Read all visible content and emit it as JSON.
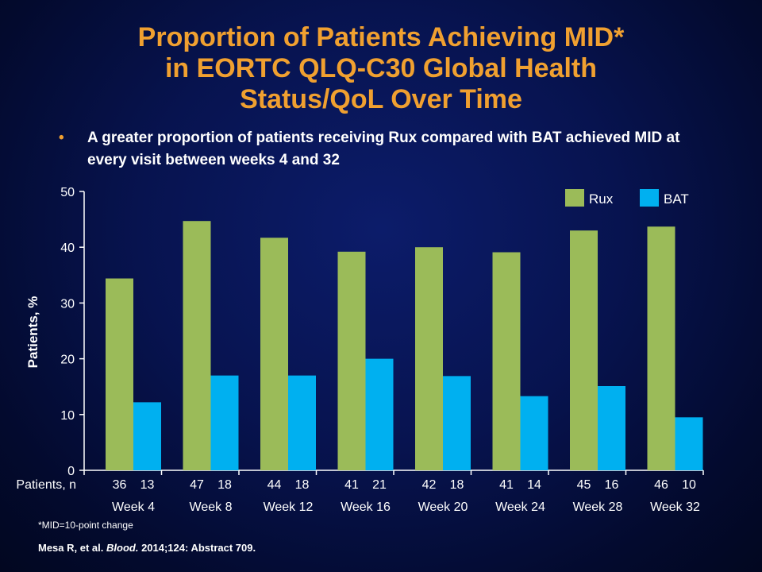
{
  "title": {
    "line1": "Proportion of Patients Achieving MID*",
    "line2": "in EORTC QLQ-C30 Global Health",
    "line3": "Status/QoL Over Time"
  },
  "bullet": {
    "marker": "•",
    "text": "A greater proportion of patients receiving Rux compared with BAT achieved MID at every visit between weeks 4 and 32"
  },
  "footnote": "*MID=10-point change",
  "citation": {
    "authors": "Mesa R, et al.",
    "journal": "Blood.",
    "rest": "2014;124: Abstract 709."
  },
  "colors": {
    "title": "#f0a030",
    "rux": "#9bbb59",
    "bat": "#00b0f0"
  },
  "chart_data": {
    "type": "bar",
    "ylabel": "Patients, %",
    "ylim": [
      0,
      50
    ],
    "yticks": [
      0,
      10,
      20,
      30,
      40,
      50
    ],
    "categories": [
      "Week 4",
      "Week 8",
      "Week 12",
      "Week 16",
      "Week 20",
      "Week 24",
      "Week 28",
      "Week 32"
    ],
    "series": [
      {
        "name": "Rux",
        "color": "#9bbb59",
        "values": [
          34.4,
          44.7,
          41.7,
          39.2,
          40.0,
          39.1,
          43.0,
          43.7
        ]
      },
      {
        "name": "BAT",
        "color": "#00b0f0",
        "values": [
          12.2,
          17.0,
          17.0,
          20.0,
          16.9,
          13.3,
          15.1,
          9.5
        ]
      }
    ],
    "n_row_label": "Patients, n",
    "n_values": [
      [
        36,
        13
      ],
      [
        47,
        18
      ],
      [
        44,
        18
      ],
      [
        41,
        21
      ],
      [
        42,
        18
      ],
      [
        41,
        14
      ],
      [
        45,
        16
      ],
      [
        46,
        10
      ]
    ],
    "legend_position": "top-right",
    "grid": false
  }
}
